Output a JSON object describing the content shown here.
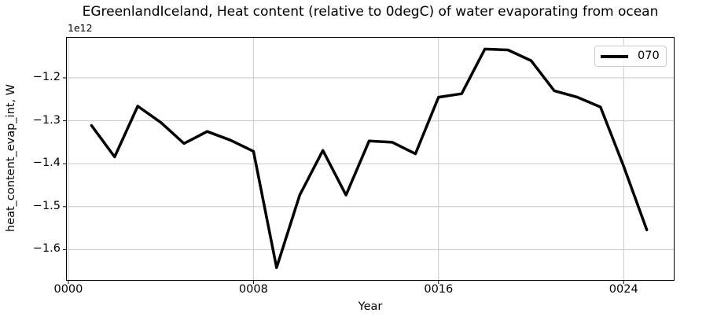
{
  "title": "EGreenlandIceland, Heat content (relative to 0degC) of water evaporating from ocean",
  "offset_text": "1e12",
  "xlabel": "Year",
  "ylabel": "heat_content_evap_int, W",
  "legend": {
    "position": "upper right",
    "entries": [
      {
        "label": "070",
        "color": "#000000"
      }
    ]
  },
  "colors": {
    "background": "#ffffff",
    "grid": "#c8c8c8",
    "spine": "#000000",
    "text": "#000000",
    "legend_border": "#cccccc"
  },
  "chart_data": {
    "type": "line",
    "title": "EGreenlandIceland, Heat content (relative to 0degC) of water evaporating from ocean",
    "xlabel": "Year",
    "ylabel": "heat_content_evap_int, W",
    "unit": "W",
    "offset_multiplier": "1e12",
    "grid": true,
    "legend_position": "upper right",
    "xlim": [
      -0.1,
      26.2
    ],
    "ylim": [
      -1.6725,
      -1.1048
    ],
    "x_ticks": {
      "positions": [
        0,
        8,
        16,
        24
      ],
      "labels": [
        "0000",
        "0008",
        "0016",
        "0024"
      ]
    },
    "y_ticks": {
      "positions": [
        -1.2,
        -1.3,
        -1.4,
        -1.5,
        -1.6
      ],
      "labels": [
        "−1.2",
        "−1.3",
        "−1.4",
        "−1.5",
        "−1.6"
      ]
    },
    "x": [
      1,
      2,
      3,
      4,
      5,
      6,
      7,
      8,
      9,
      10,
      11,
      12,
      13,
      14,
      15,
      16,
      17,
      18,
      19,
      20,
      21,
      22,
      23,
      24,
      25
    ],
    "series": [
      {
        "name": "070",
        "color": "#000000",
        "line_width": 3.5,
        "values_in_1e12_W": [
          -1.311,
          -1.384,
          -1.266,
          -1.304,
          -1.353,
          -1.325,
          -1.345,
          -1.371,
          -1.642,
          -1.473,
          -1.369,
          -1.473,
          -1.347,
          -1.35,
          -1.377,
          -1.245,
          -1.237,
          -1.133,
          -1.135,
          -1.16,
          -1.23,
          -1.245,
          -1.268,
          -1.406,
          -1.554
        ]
      }
    ]
  }
}
